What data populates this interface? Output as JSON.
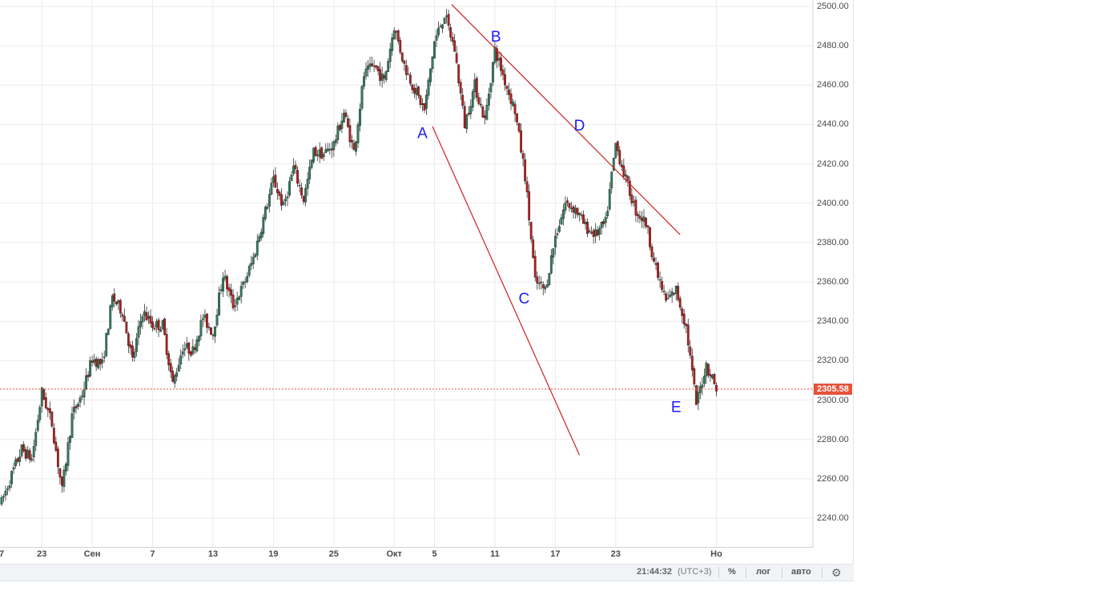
{
  "footer": {
    "clock": "21:44:32",
    "timezone": "(UTC+3)",
    "percent_label": "%",
    "log_label": "лог",
    "auto_label": "авто",
    "gear_icon": "gear-icon"
  },
  "last_price": {
    "label": "2305.58",
    "value": 2305.58,
    "color": "#e5533b"
  },
  "colors": {
    "up_candle": "#2e7d5b",
    "down_candle": "#b71c1c",
    "wick": "#333333",
    "grid": "#ececec",
    "trendline": "#cc2222",
    "wave_label": "#1a1aff"
  },
  "chart_data": {
    "type": "candlestick",
    "ylim": [
      2225,
      2501
    ],
    "y_ticks": [
      {
        "value": 2500,
        "label": "2500.00"
      },
      {
        "value": 2480,
        "label": "2480.00"
      },
      {
        "value": 2460,
        "label": "2460.00"
      },
      {
        "value": 2440,
        "label": "2440.00"
      },
      {
        "value": 2420,
        "label": "2420.00"
      },
      {
        "value": 2400,
        "label": "2400.00"
      },
      {
        "value": 2380,
        "label": "2380.00"
      },
      {
        "value": 2360,
        "label": "2360.00"
      },
      {
        "value": 2340,
        "label": "2340.00"
      },
      {
        "value": 2320,
        "label": "2320.00"
      },
      {
        "value": 2300,
        "label": "2300.00"
      },
      {
        "value": 2280,
        "label": "2280.00"
      },
      {
        "value": 2260,
        "label": "2260.00"
      },
      {
        "value": 2240,
        "label": "2240.00"
      }
    ],
    "x_ticks": [
      {
        "t": -1.5,
        "label": "7"
      },
      {
        "t": 4,
        "label": "23"
      },
      {
        "t": 9,
        "label": "Сен"
      },
      {
        "t": 15,
        "label": "7"
      },
      {
        "t": 21,
        "label": "13"
      },
      {
        "t": 27,
        "label": "19"
      },
      {
        "t": 33,
        "label": "25"
      },
      {
        "t": 39,
        "label": "Окт"
      },
      {
        "t": 43,
        "label": "5"
      },
      {
        "t": 49,
        "label": "11"
      },
      {
        "t": 55,
        "label": "17"
      },
      {
        "t": 61,
        "label": "23"
      },
      {
        "t": 71,
        "label": "Но"
      }
    ],
    "path": [
      [
        0,
        2248
      ],
      [
        1,
        2262
      ],
      [
        2,
        2275
      ],
      [
        3,
        2270
      ],
      [
        4,
        2304
      ],
      [
        5,
        2288
      ],
      [
        6,
        2254
      ],
      [
        7,
        2292
      ],
      [
        8,
        2303
      ],
      [
        9,
        2321
      ],
      [
        10,
        2318
      ],
      [
        11,
        2352
      ],
      [
        12,
        2345
      ],
      [
        13,
        2320
      ],
      [
        14,
        2345
      ],
      [
        15,
        2338
      ],
      [
        16,
        2338
      ],
      [
        17,
        2308
      ],
      [
        18,
        2327
      ],
      [
        19,
        2325
      ],
      [
        20,
        2342
      ],
      [
        21,
        2334
      ],
      [
        22,
        2364
      ],
      [
        23,
        2348
      ],
      [
        24,
        2358
      ],
      [
        25,
        2372
      ],
      [
        26,
        2392
      ],
      [
        27,
        2412
      ],
      [
        28,
        2398
      ],
      [
        29,
        2418
      ],
      [
        30,
        2402
      ],
      [
        31,
        2426
      ],
      [
        32,
        2425
      ],
      [
        33,
        2430
      ],
      [
        34,
        2446
      ],
      [
        35,
        2426
      ],
      [
        36,
        2465
      ],
      [
        37,
        2470
      ],
      [
        38,
        2462
      ],
      [
        39,
        2490
      ],
      [
        40,
        2470
      ],
      [
        41,
        2458
      ],
      [
        42,
        2447
      ],
      [
        43,
        2482
      ],
      [
        44,
        2496
      ],
      [
        45,
        2478
      ],
      [
        46,
        2440
      ],
      [
        47,
        2460
      ],
      [
        48,
        2442
      ],
      [
        49,
        2478
      ],
      [
        50,
        2462
      ],
      [
        51,
        2447
      ],
      [
        52,
        2414
      ],
      [
        53,
        2360
      ],
      [
        54,
        2356
      ],
      [
        55,
        2383
      ],
      [
        56,
        2400
      ],
      [
        57,
        2397
      ],
      [
        58,
        2388
      ],
      [
        59,
        2384
      ],
      [
        60,
        2390
      ],
      [
        61,
        2430
      ],
      [
        62,
        2412
      ],
      [
        63,
        2396
      ],
      [
        64,
        2390
      ],
      [
        65,
        2366
      ],
      [
        66,
        2350
      ],
      [
        67,
        2356
      ],
      [
        68,
        2337
      ],
      [
        69,
        2298
      ],
      [
        70,
        2318
      ],
      [
        71,
        2306
      ]
    ],
    "trendlines": [
      {
        "from": [
          44.7,
          2501
        ],
        "to": [
          67.4,
          2384
        ]
      },
      {
        "from": [
          42.8,
          2439
        ],
        "to": [
          57.4,
          2272
        ]
      }
    ],
    "annotations": [
      {
        "label": "A",
        "t": 41.8,
        "v": 2433
      },
      {
        "label": "B",
        "t": 49.1,
        "v": 2482
      },
      {
        "label": "C",
        "t": 51.9,
        "v": 2349
      },
      {
        "label": "D",
        "t": 57.4,
        "v": 2437
      },
      {
        "label": "E",
        "t": 67.0,
        "v": 2294
      }
    ]
  }
}
